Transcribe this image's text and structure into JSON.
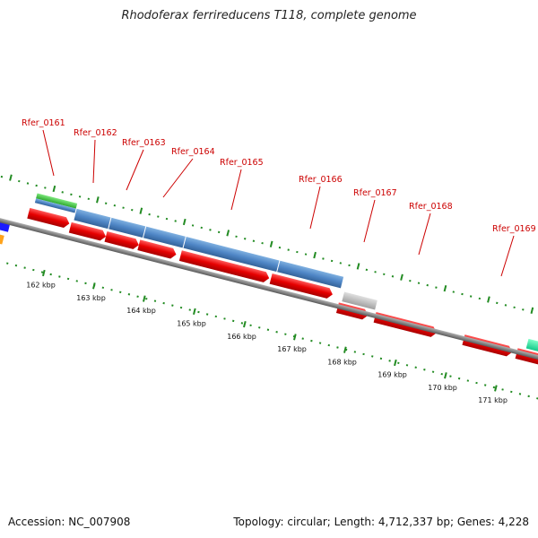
{
  "title": "Rhodoferax ferrireducens T118, complete genome",
  "footer": {
    "accession": "Accession: NC_007908",
    "info": "Topology: circular; Length: 4,712,337 bp; Genes: 4,228"
  },
  "colors": {
    "label": "#cc0000",
    "tick": "#228b22",
    "backbone": "#8a8a8a",
    "cds": "#e60000",
    "blue_feature": "#4f86c6",
    "green_feature": "#3cc43c",
    "gray_feature": "#bdbdbd"
  },
  "gene_labels": [
    "Rfer_0161",
    "Rfer_0162",
    "Rfer_0163",
    "Rfer_0164",
    "Rfer_0165",
    "Rfer_0166",
    "Rfer_0167",
    "Rfer_0168",
    "Rfer_0169"
  ],
  "tick_labels": [
    "162 kbp",
    "163 kbp",
    "164 kbp",
    "165 kbp",
    "166 kbp",
    "167 kbp",
    "168 kbp",
    "169 kbp",
    "170 kbp",
    "171 kbp"
  ]
}
